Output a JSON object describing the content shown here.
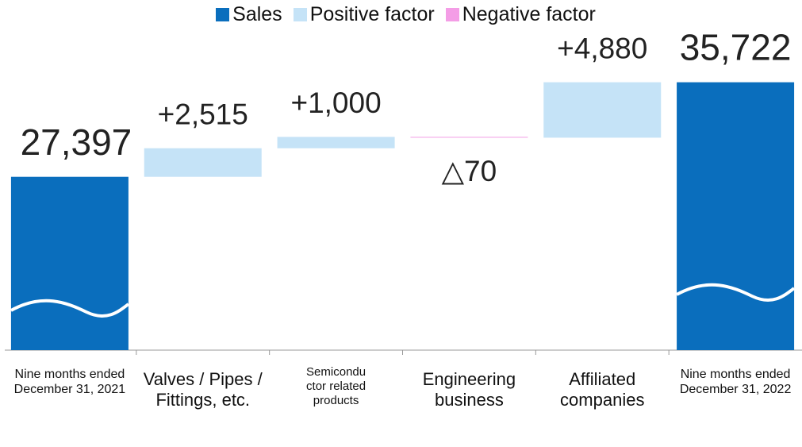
{
  "chart_data": {
    "type": "waterfall",
    "categories": [
      "Nine months ended December 31, 2021",
      "Valves / Pipes / Fittings, etc.",
      "Semiconductor related products",
      "Engineering business",
      "Affiliated companies",
      "Nine months ended December 31, 2022"
    ],
    "series": [
      {
        "name": "Sales",
        "color": "#0a6ebd",
        "values": [
          27397,
          null,
          null,
          null,
          null,
          35722
        ],
        "value_labels": [
          "27,397",
          null,
          null,
          null,
          null,
          "35,722"
        ]
      },
      {
        "name": "Positive factor",
        "color": "#c5e3f7",
        "values": [
          null,
          2515,
          1000,
          null,
          4880,
          null
        ],
        "value_labels": [
          null,
          "+2,515",
          "+1,000",
          null,
          "+4,880",
          null
        ]
      },
      {
        "name": "Negative factor",
        "color": "#f49de6",
        "values": [
          null,
          null,
          null,
          -70,
          null,
          null
        ],
        "value_labels": [
          null,
          null,
          null,
          "△70",
          null,
          null
        ]
      }
    ],
    "ylim": [
      12000,
      38000
    ]
  }
}
